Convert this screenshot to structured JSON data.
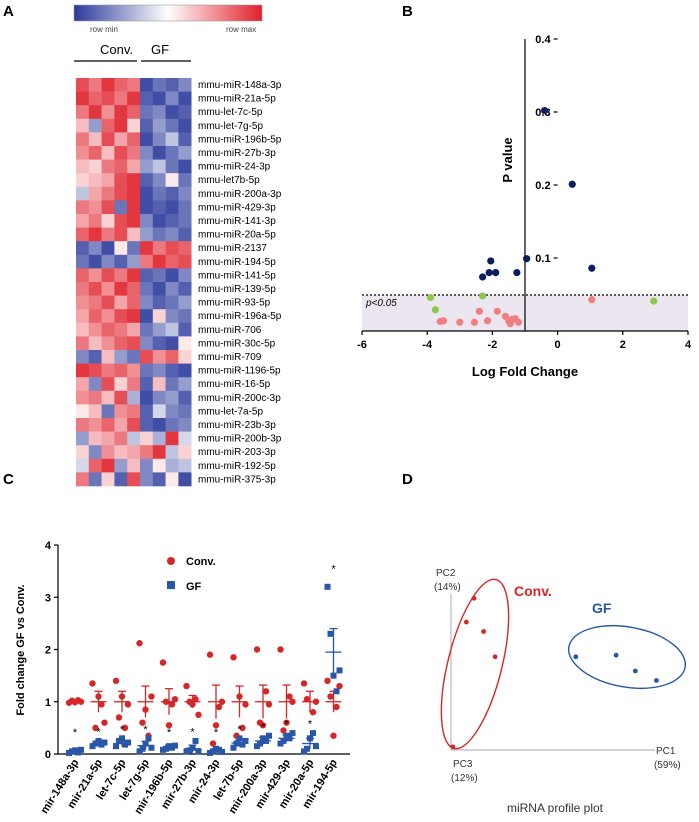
{
  "panels": {
    "A": "A",
    "B": "B",
    "C": "C",
    "D": "D"
  },
  "colors": {
    "heat_blue": "#2b3a9b",
    "heat_white": "#ffffff",
    "heat_red": "#e0202a",
    "navy": "#0b1d5e",
    "salmon": "#f08080",
    "green": "#8cc84b",
    "conv_red": "#d62728",
    "gf_blue": "#2a56a8"
  },
  "chart_data": [
    {
      "type": "heatmap",
      "panel": "A",
      "colorbar": {
        "min_label": "row min",
        "max_label": "row max"
      },
      "groups": [
        "Conv.",
        "GF"
      ],
      "rows": [
        "mmu-miR-148a-3p",
        "mmu-miR-21a-5p",
        "mmu-let-7c-5p",
        "mmu-let-7g-5p",
        "mmu-miR-196b-5p",
        "mmu-miR-27b-3p",
        "mmu-miR-24-3p",
        "mmu-let7b-5p",
        "mmu-miR-200a-3p",
        "mmu-miR-429-3p",
        "mmu-miR-141-3p",
        "mmu-miR-20a-5p",
        "mmu-miR-2137",
        "mmu-miR-194-5p",
        "mmu-miR-141-5p",
        "mmu-miR-139-5p",
        "mmu-miR-93-5p",
        "mmu-miR-196a-5p",
        "mmu-miR-706",
        "mmu-miR-30c-5p",
        "mmu-miR-709",
        "mmu-miR-1196-5p",
        "mmu-miR-16-5p",
        "mmu-miR-200c-3p",
        "mmu-let-7a-5p",
        "mmu-miR-23b-3p",
        "mmu-miR-200b-3p",
        "mmu-miR-203-3p",
        "mmu-miR-192-5p",
        "mmu-miR-375-3p"
      ],
      "values": [
        [
          0.8,
          0.6,
          0.9,
          0.7,
          0.6,
          -0.9,
          -0.7,
          -0.8,
          -0.6
        ],
        [
          0.9,
          0.7,
          0.8,
          0.6,
          0.9,
          -0.8,
          -0.9,
          -0.6,
          -0.9
        ],
        [
          0.6,
          0.9,
          0.5,
          0.9,
          0.7,
          -0.7,
          -0.6,
          -0.9,
          -0.8
        ],
        [
          0.3,
          -0.5,
          0.7,
          0.9,
          0.2,
          -0.8,
          -0.5,
          -0.7,
          -0.9
        ],
        [
          0.6,
          0.3,
          0.8,
          0.4,
          0.7,
          -0.9,
          -0.6,
          -0.3,
          -0.8
        ],
        [
          0.5,
          0.7,
          0.3,
          0.8,
          0.6,
          -0.6,
          -0.9,
          -0.7,
          -0.5
        ],
        [
          0.3,
          0.2,
          0.6,
          0.7,
          0.4,
          -0.5,
          -0.3,
          -0.7,
          -0.9
        ],
        [
          0.2,
          0.3,
          0.4,
          0.8,
          0.9,
          -0.8,
          -0.6,
          0.1,
          -0.7
        ],
        [
          -0.3,
          0.4,
          0.6,
          0.8,
          0.9,
          -0.9,
          -0.7,
          -0.8,
          -0.6
        ],
        [
          0.6,
          0.5,
          0.8,
          -0.7,
          0.9,
          -0.9,
          -0.8,
          -0.9,
          -0.7
        ],
        [
          0.4,
          0.6,
          0.2,
          0.8,
          0.9,
          -0.6,
          -0.9,
          -0.8,
          -0.7
        ],
        [
          0.7,
          0.9,
          0.6,
          0.8,
          0.3,
          -0.5,
          -0.7,
          -0.6,
          -0.8
        ],
        [
          -0.8,
          -0.6,
          -0.9,
          0.1,
          -0.7,
          0.9,
          0.6,
          0.8,
          0.7
        ],
        [
          -0.7,
          -0.9,
          -0.6,
          -0.8,
          -0.5,
          0.6,
          0.9,
          0.7,
          0.8
        ],
        [
          0.7,
          0.5,
          0.8,
          0.6,
          0.9,
          -0.8,
          -0.7,
          -0.9,
          -0.6
        ],
        [
          0.6,
          0.8,
          0.5,
          0.9,
          0.7,
          -0.7,
          -0.9,
          -0.6,
          -0.8
        ],
        [
          0.5,
          0.6,
          0.8,
          0.4,
          0.7,
          -0.6,
          -0.8,
          -0.7,
          -0.5
        ],
        [
          0.4,
          0.7,
          0.5,
          0.8,
          0.9,
          -0.9,
          0.2,
          -0.6,
          -0.7
        ],
        [
          0.3,
          0.5,
          0.7,
          0.6,
          0.4,
          -0.7,
          -0.5,
          -0.3,
          -0.8
        ],
        [
          0.6,
          0.3,
          0.5,
          0.7,
          0.8,
          -0.6,
          -0.8,
          -0.9,
          0.1
        ],
        [
          -0.6,
          -0.8,
          0.3,
          -0.5,
          -0.7,
          0.8,
          0.5,
          0.7,
          0.2
        ],
        [
          0.9,
          0.8,
          0.6,
          0.7,
          0.5,
          -0.7,
          -0.6,
          -0.8,
          -0.9
        ],
        [
          0.4,
          -0.6,
          0.8,
          0.2,
          0.6,
          -0.8,
          0.3,
          -0.7,
          -0.5
        ],
        [
          0.5,
          0.6,
          0.3,
          0.8,
          -0.4,
          -0.9,
          -0.6,
          -0.5,
          -0.8
        ],
        [
          0.1,
          0.3,
          -0.7,
          0.5,
          0.6,
          -0.8,
          -0.2,
          -0.6,
          -0.7
        ],
        [
          0.6,
          0.5,
          0.7,
          0.4,
          0.8,
          -0.8,
          -0.9,
          -0.7,
          -0.6
        ],
        [
          -0.5,
          0.3,
          0.4,
          0.6,
          -0.3,
          0.2,
          -0.4,
          0.9,
          -0.2
        ],
        [
          0.2,
          -0.6,
          0.5,
          0.3,
          0.4,
          0.6,
          0.9,
          -0.3,
          0.2
        ],
        [
          -0.2,
          0.7,
          0.9,
          -0.5,
          0.3,
          -0.6,
          0.1,
          -0.4,
          -0.3
        ],
        [
          0.6,
          -0.7,
          0.2,
          -0.8,
          0.8,
          -0.6,
          -0.8,
          0.1,
          -0.9
        ]
      ]
    },
    {
      "type": "scatter",
      "panel": "B",
      "xlabel": "Log Fold Change",
      "ylabel": "P value",
      "xlim": [
        -6,
        4
      ],
      "ylim": [
        0,
        0.4
      ],
      "xticks": [
        -6,
        -4,
        -2,
        0,
        2,
        4
      ],
      "yticks": [
        0.1,
        0.2,
        0.3,
        0.4
      ],
      "threshold": {
        "y": 0.05,
        "label": "p<0.05"
      },
      "series": [
        {
          "name": "navy",
          "color": "#0b1d5e",
          "points": [
            [
              -0.4,
              0.302
            ],
            [
              0.45,
              0.201
            ],
            [
              -2.3,
              0.074
            ],
            [
              -2.1,
              0.08
            ],
            [
              -1.9,
              0.08
            ],
            [
              -2.05,
              0.096
            ],
            [
              -1.25,
              0.08
            ],
            [
              -0.95,
              0.099
            ],
            [
              1.05,
              0.086
            ]
          ]
        },
        {
          "name": "green",
          "color": "#8cc84b",
          "points": [
            [
              -3.9,
              0.046
            ],
            [
              -3.75,
              0.029
            ],
            [
              -2.3,
              0.048
            ],
            [
              2.95,
              0.041
            ]
          ]
        },
        {
          "name": "salmon",
          "color": "#f08080",
          "points": [
            [
              -3.6,
              0.013
            ],
            [
              -3.5,
              0.014
            ],
            [
              -3.0,
              0.012
            ],
            [
              -2.55,
              0.012
            ],
            [
              -2.15,
              0.014
            ],
            [
              -2.4,
              0.027
            ],
            [
              -1.85,
              0.027
            ],
            [
              -1.6,
              0.02
            ],
            [
              -1.45,
              0.01
            ],
            [
              -1.5,
              0.014
            ],
            [
              -1.3,
              0.017
            ],
            [
              -1.2,
              0.012
            ],
            [
              -1.4,
              0.016
            ],
            [
              1.05,
              0.043
            ]
          ]
        }
      ]
    },
    {
      "type": "scatter",
      "panel": "C",
      "ylabel": "Fold change GF vs Conv.",
      "ylim": [
        0,
        4
      ],
      "yticks": [
        0,
        1,
        2,
        3,
        4
      ],
      "categories": [
        "mir-148a-3p",
        "mir-21a-5p",
        "let-7c-5p",
        "let-7g-5p",
        "mir-196b-5p",
        "mir-27b-3p",
        "mir-24-3p",
        "let-7b-5p",
        "mir-200a-3p",
        "mir-429-3p",
        "mir-20a-5p",
        "mir-194-5p"
      ],
      "legend": [
        "Conv.",
        "GF"
      ],
      "significance_marker": "*",
      "significant": [
        true,
        true,
        true,
        true,
        true,
        true,
        true,
        true,
        true,
        true,
        true,
        true
      ],
      "series": [
        {
          "name": "Conv.",
          "color": "#d62728",
          "mean": [
            1,
            1,
            1,
            1,
            1,
            1,
            1,
            1,
            1,
            1,
            1,
            1
          ],
          "sem": [
            0.02,
            0.2,
            0.2,
            0.3,
            0.25,
            0.12,
            0.32,
            0.3,
            0.32,
            0.32,
            0.2,
            0.2
          ],
          "points": [
            [
              0.98,
              1.02,
              0.99,
              1.03,
              1.0
            ],
            [
              1.35,
              0.5,
              1.1,
              0.95,
              0.6
            ],
            [
              1.4,
              0.7,
              1.1,
              0.5,
              0.95
            ],
            [
              2.12,
              0.6,
              0.85,
              0.35,
              1.1
            ],
            [
              1.75,
              1.0,
              0.55,
              0.95,
              1.05
            ],
            [
              1.3,
              1.0,
              0.95,
              1.05,
              0.75
            ],
            [
              1.9,
              0.2,
              0.55,
              0.9,
              1.0
            ],
            [
              1.85,
              0.35,
              1.1,
              0.5,
              0.95
            ],
            [
              2.0,
              0.6,
              0.55,
              1.2,
              0.95
            ],
            [
              2.0,
              0.45,
              0.6,
              1.1,
              1.0
            ],
            [
              1.35,
              1.05,
              0.3,
              0.8,
              1.0
            ],
            [
              1.4,
              1.1,
              0.35,
              0.9,
              1.3
            ]
          ]
        },
        {
          "name": "GF",
          "color": "#2a56a8",
          "mean": [
            0.05,
            0.2,
            0.2,
            0.16,
            0.12,
            0.1,
            0.06,
            0.21,
            0.25,
            0.3,
            0.2,
            1.95
          ],
          "sem": [
            0.02,
            0.05,
            0.05,
            0.08,
            0.05,
            0.07,
            0.04,
            0.06,
            0.07,
            0.06,
            0.1,
            0.45
          ],
          "points": [
            [
              0.02,
              0.05,
              0.07,
              0.03,
              0.08
            ],
            [
              0.15,
              0.2,
              0.25,
              0.18,
              0.22
            ],
            [
              0.15,
              0.25,
              0.3,
              0.18,
              0.22
            ],
            [
              0.05,
              0.1,
              0.2,
              0.3,
              0.12
            ],
            [
              0.08,
              0.1,
              0.15,
              0.12,
              0.16
            ],
            [
              0.05,
              0.07,
              0.12,
              0.25,
              0.05
            ],
            [
              0.02,
              0.05,
              0.1,
              0.08,
              0.04
            ],
            [
              0.12,
              0.2,
              0.3,
              0.18,
              0.25
            ],
            [
              0.15,
              0.2,
              0.3,
              0.25,
              0.35
            ],
            [
              0.2,
              0.25,
              0.35,
              0.3,
              0.4
            ],
            [
              0.05,
              0.1,
              0.3,
              0.4,
              0.15
            ],
            [
              3.2,
              2.3,
              1.5,
              1.2,
              1.6
            ]
          ]
        }
      ]
    },
    {
      "type": "scatter",
      "panel": "D",
      "title": "miRNA profile plot",
      "axes": {
        "pc1": "PC1",
        "pc1_pct": "(59%)",
        "pc2": "PC2",
        "pc2_pct": "(14%)",
        "pc3": "PC3",
        "pc3_pct": "(12%)"
      },
      "series": [
        {
          "name": "Conv.",
          "color": "#d62728",
          "points": [
            [
              0.08,
              0.81
            ],
            [
              0.17,
              0.75
            ],
            [
              0.12,
              0.96
            ],
            [
              0.23,
              0.59
            ],
            [
              0.01,
              0.02
            ]
          ]
        },
        {
          "name": "GF",
          "color": "#2a56a8",
          "points": [
            [
              0.65,
              0.59
            ],
            [
              0.86,
              0.6
            ],
            [
              0.96,
              0.5
            ],
            [
              1.07,
              0.44
            ]
          ]
        }
      ]
    }
  ]
}
